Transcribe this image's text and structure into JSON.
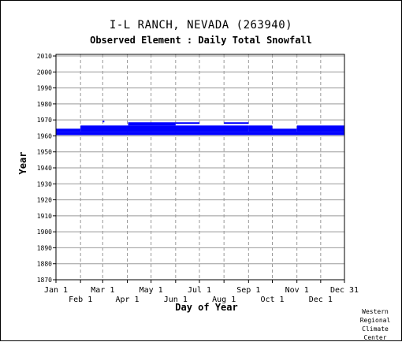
{
  "title": "I-L RANCH, NEVADA   (263940)",
  "subtitle": "Observed Element : Daily Total Snowfall",
  "credit": [
    "Western",
    "Regional",
    "Climate",
    "Center"
  ],
  "colors": {
    "data": "#0000ff",
    "grid": "#999999",
    "axis": "#000000"
  },
  "chart_data": {
    "type": "bar",
    "orientation": "horizontal-timeline",
    "xlabel": "Day of Year",
    "ylabel": "Year",
    "xlim": [
      1,
      365
    ],
    "ylim": [
      1870,
      2011
    ],
    "x_ticks_upper": [
      {
        "label": "Jan 1",
        "day": 1
      },
      {
        "label": "Mar 1",
        "day": 60
      },
      {
        "label": "May 1",
        "day": 121
      },
      {
        "label": "Jul 1",
        "day": 182
      },
      {
        "label": "Sep 1",
        "day": 244
      },
      {
        "label": "Nov 1",
        "day": 305
      },
      {
        "label": "Dec 31",
        "day": 365
      }
    ],
    "x_ticks_lower": [
      {
        "label": "Feb 1",
        "day": 32
      },
      {
        "label": "Apr 1",
        "day": 91
      },
      {
        "label": "Jun 1",
        "day": 152
      },
      {
        "label": "Aug 1",
        "day": 213
      },
      {
        "label": "Oct 1",
        "day": 274
      },
      {
        "label": "Dec 1",
        "day": 335
      }
    ],
    "y_ticks": [
      1870,
      1880,
      1890,
      1900,
      1910,
      1920,
      1930,
      1940,
      1950,
      1960,
      1970,
      1980,
      1990,
      2000,
      2010
    ],
    "grid": true,
    "series": [
      {
        "segments": [
          {
            "from_day": 1,
            "to_day": 365,
            "from_year": 1960.5,
            "to_year": 1962.5
          },
          {
            "from_day": 1,
            "to_day": 32,
            "from_year": 1962.5,
            "to_year": 1964.5
          },
          {
            "from_day": 32,
            "to_day": 92,
            "from_year": 1962.5,
            "to_year": 1966.5
          },
          {
            "from_day": 92,
            "to_day": 244,
            "from_year": 1962.5,
            "to_year": 1966.5
          },
          {
            "from_day": 244,
            "to_day": 274,
            "from_year": 1962.5,
            "to_year": 1966.5
          },
          {
            "from_day": 305,
            "to_day": 365,
            "from_year": 1962.5,
            "to_year": 1966.5
          },
          {
            "from_day": 274,
            "to_day": 305,
            "from_year": 1962.5,
            "to_year": 1964.5
          },
          {
            "from_day": 92,
            "to_day": 152,
            "from_year": 1966.5,
            "to_year": 1968.5
          },
          {
            "from_day": 213,
            "to_day": 244,
            "from_year": 1967.5,
            "to_year": 1968.5
          },
          {
            "from_day": 152,
            "to_day": 182,
            "from_year": 1967.5,
            "to_year": 1968.5
          },
          {
            "from_day": 60,
            "to_day": 62,
            "from_year": 1968.5,
            "to_year": 1969.5
          }
        ]
      }
    ]
  }
}
